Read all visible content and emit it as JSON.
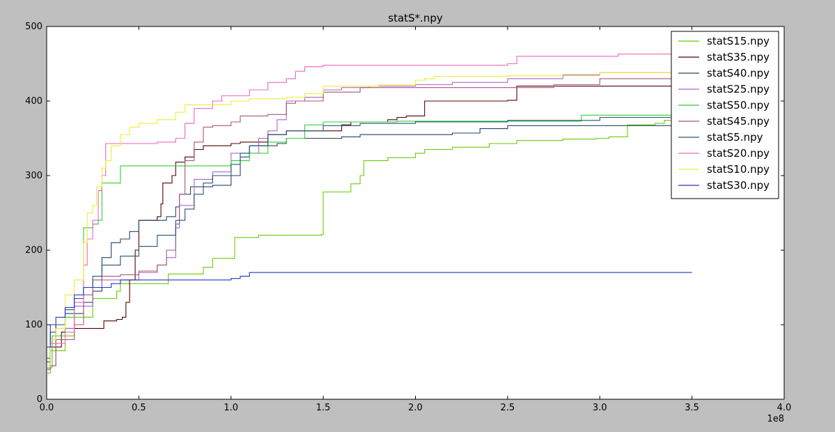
{
  "chart_data": {
    "type": "line",
    "title": "statS*.npy",
    "xlabel": "",
    "ylabel": "",
    "x_offset_label": "1e8",
    "xlim": [
      0,
      4.0
    ],
    "ylim": [
      0,
      500
    ],
    "x_ticks": [
      "0.0",
      "0.5",
      "1.0",
      "1.5",
      "2.0",
      "2.5",
      "3.0",
      "3.5",
      "4.0"
    ],
    "y_ticks": [
      "0",
      "100",
      "200",
      "300",
      "400",
      "500"
    ],
    "legend_position": "top-right",
    "grid": false,
    "series": [
      {
        "name": "statS15.npy",
        "color": "#66cc00",
        "points": [
          [
            0,
            35
          ],
          [
            0.02,
            65
          ],
          [
            0.1,
            85
          ],
          [
            0.15,
            110
          ],
          [
            0.25,
            135
          ],
          [
            0.38,
            145
          ],
          [
            0.4,
            155
          ],
          [
            0.65,
            155
          ],
          [
            0.66,
            168
          ],
          [
            0.8,
            168
          ],
          [
            0.85,
            177
          ],
          [
            0.9,
            189
          ],
          [
            1.0,
            189
          ],
          [
            1.02,
            217
          ],
          [
            1.15,
            220
          ],
          [
            1.49,
            221
          ],
          [
            1.5,
            278
          ],
          [
            1.65,
            289
          ],
          [
            1.7,
            300
          ],
          [
            1.72,
            320
          ],
          [
            1.85,
            324
          ],
          [
            2.0,
            330
          ],
          [
            2.05,
            335
          ],
          [
            2.2,
            338
          ],
          [
            2.4,
            343
          ],
          [
            2.55,
            347
          ],
          [
            2.8,
            349
          ],
          [
            2.98,
            350
          ],
          [
            3.05,
            352
          ],
          [
            3.15,
            368
          ],
          [
            3.3,
            370
          ],
          [
            3.35,
            374
          ],
          [
            3.5,
            375
          ]
        ]
      },
      {
        "name": "statS35.npy",
        "color": "#550000",
        "points": [
          [
            0,
            40
          ],
          [
            0.02,
            70
          ],
          [
            0.08,
            90
          ],
          [
            0.1,
            95
          ],
          [
            0.3,
            95
          ],
          [
            0.31,
            105
          ],
          [
            0.38,
            107
          ],
          [
            0.41,
            110
          ],
          [
            0.43,
            130
          ],
          [
            0.45,
            160
          ],
          [
            0.48,
            200
          ],
          [
            0.5,
            220
          ],
          [
            0.5,
            240
          ],
          [
            0.6,
            245
          ],
          [
            0.62,
            262
          ],
          [
            0.63,
            290
          ],
          [
            0.68,
            300
          ],
          [
            0.7,
            318
          ],
          [
            0.75,
            325
          ],
          [
            0.8,
            335
          ],
          [
            0.85,
            340
          ],
          [
            1.0,
            343
          ],
          [
            1.05,
            345
          ],
          [
            1.2,
            355
          ],
          [
            1.3,
            360
          ],
          [
            1.6,
            368
          ],
          [
            1.65,
            372
          ],
          [
            1.85,
            375
          ],
          [
            1.9,
            378
          ],
          [
            1.95,
            380
          ],
          [
            2.05,
            400
          ],
          [
            2.5,
            401
          ],
          [
            2.55,
            420
          ],
          [
            3.5,
            422
          ]
        ]
      },
      {
        "name": "statS40.npy",
        "color": "#224466",
        "points": [
          [
            0,
            50
          ],
          [
            0.02,
            80
          ],
          [
            0.05,
            100
          ],
          [
            0.1,
            115
          ],
          [
            0.2,
            130
          ],
          [
            0.25,
            145
          ],
          [
            0.3,
            170
          ],
          [
            0.3,
            190
          ],
          [
            0.35,
            210
          ],
          [
            0.4,
            215
          ],
          [
            0.45,
            225
          ],
          [
            0.5,
            240
          ],
          [
            0.6,
            240
          ],
          [
            0.65,
            245
          ],
          [
            0.7,
            258
          ],
          [
            0.72,
            275
          ],
          [
            0.78,
            285
          ],
          [
            0.9,
            287
          ],
          [
            0.95,
            287
          ],
          [
            1.0,
            300
          ],
          [
            1.05,
            325
          ],
          [
            1.1,
            340
          ],
          [
            1.25,
            343
          ],
          [
            1.3,
            350
          ],
          [
            1.5,
            350
          ],
          [
            1.6,
            352
          ],
          [
            1.7,
            355
          ],
          [
            2.2,
            357
          ],
          [
            2.35,
            363
          ],
          [
            2.5,
            367
          ],
          [
            3.5,
            368
          ]
        ]
      },
      {
        "name": "statS25.npy",
        "color": "#aa66cc",
        "points": [
          [
            0,
            45
          ],
          [
            0.05,
            95
          ],
          [
            0.15,
            125
          ],
          [
            0.25,
            150
          ],
          [
            0.3,
            160
          ],
          [
            0.5,
            170
          ],
          [
            0.6,
            180
          ],
          [
            0.65,
            190
          ],
          [
            0.7,
            230
          ],
          [
            0.72,
            260
          ],
          [
            0.8,
            295
          ],
          [
            0.9,
            305
          ],
          [
            1.0,
            330
          ],
          [
            1.15,
            350
          ],
          [
            1.2,
            360
          ],
          [
            1.25,
            375
          ],
          [
            1.3,
            400
          ],
          [
            1.4,
            405
          ],
          [
            1.5,
            415
          ],
          [
            1.6,
            418
          ],
          [
            1.75,
            420
          ],
          [
            2.0,
            422
          ],
          [
            2.2,
            425
          ],
          [
            2.5,
            430
          ],
          [
            2.8,
            435
          ],
          [
            3.0,
            438
          ],
          [
            3.5,
            441
          ]
        ]
      },
      {
        "name": "statS50.npy",
        "color": "#33cc33",
        "points": [
          [
            0,
            42
          ],
          [
            0.03,
            85
          ],
          [
            0.1,
            110
          ],
          [
            0.15,
            135
          ],
          [
            0.2,
            170
          ],
          [
            0.2,
            230
          ],
          [
            0.25,
            235
          ],
          [
            0.28,
            240
          ],
          [
            0.3,
            280
          ],
          [
            0.3,
            290
          ],
          [
            0.4,
            292
          ],
          [
            0.4,
            313
          ],
          [
            1.0,
            320
          ],
          [
            1.1,
            330
          ],
          [
            1.2,
            345
          ],
          [
            1.3,
            350
          ],
          [
            1.4,
            368
          ],
          [
            1.5,
            372
          ],
          [
            1.9,
            373
          ],
          [
            2.5,
            373
          ],
          [
            2.9,
            373
          ],
          [
            2.9,
            381
          ],
          [
            3.5,
            381
          ]
        ]
      },
      {
        "name": "statS45.npy",
        "color": "#aa5577",
        "points": [
          [
            0,
            45
          ],
          [
            0.05,
            80
          ],
          [
            0.15,
            100
          ],
          [
            0.2,
            140
          ],
          [
            0.25,
            160
          ],
          [
            0.3,
            165
          ],
          [
            0.4,
            167
          ],
          [
            0.5,
            172
          ],
          [
            0.6,
            180
          ],
          [
            0.65,
            200
          ],
          [
            0.7,
            235
          ],
          [
            0.72,
            275
          ],
          [
            0.75,
            320
          ],
          [
            0.8,
            345
          ],
          [
            0.85,
            365
          ],
          [
            0.9,
            367
          ],
          [
            1.0,
            372
          ],
          [
            1.05,
            380
          ],
          [
            1.1,
            380
          ],
          [
            1.15,
            380
          ],
          [
            1.2,
            382
          ],
          [
            1.3,
            397
          ],
          [
            1.35,
            400
          ],
          [
            1.5,
            412
          ],
          [
            1.7,
            418
          ],
          [
            2.0,
            418
          ],
          [
            2.5,
            418
          ],
          [
            2.75,
            422
          ],
          [
            3.0,
            430
          ],
          [
            3.5,
            435
          ]
        ]
      },
      {
        "name": "statS5.npy",
        "color": "#225577",
        "points": [
          [
            0,
            55
          ],
          [
            0.02,
            90
          ],
          [
            0.05,
            100
          ],
          [
            0.1,
            120
          ],
          [
            0.15,
            135
          ],
          [
            0.2,
            150
          ],
          [
            0.25,
            165
          ],
          [
            0.3,
            180
          ],
          [
            0.4,
            192
          ],
          [
            0.5,
            205
          ],
          [
            0.6,
            220
          ],
          [
            0.7,
            240
          ],
          [
            0.75,
            255
          ],
          [
            0.8,
            275
          ],
          [
            0.85,
            290
          ],
          [
            0.9,
            300
          ],
          [
            1.0,
            315
          ],
          [
            1.05,
            330
          ],
          [
            1.1,
            340
          ],
          [
            1.2,
            355
          ],
          [
            1.3,
            360
          ],
          [
            1.5,
            367
          ],
          [
            1.7,
            370
          ],
          [
            2.0,
            372
          ],
          [
            2.5,
            374
          ],
          [
            3.0,
            378
          ],
          [
            3.5,
            380
          ]
        ]
      },
      {
        "name": "statS20.npy",
        "color": "#ee66bb",
        "points": [
          [
            0,
            40
          ],
          [
            0.02,
            75
          ],
          [
            0.1,
            90
          ],
          [
            0.15,
            130
          ],
          [
            0.2,
            180
          ],
          [
            0.22,
            215
          ],
          [
            0.25,
            240
          ],
          [
            0.28,
            280
          ],
          [
            0.3,
            300
          ],
          [
            0.32,
            343
          ],
          [
            0.6,
            345
          ],
          [
            0.7,
            350
          ],
          [
            0.75,
            370
          ],
          [
            0.8,
            390
          ],
          [
            0.9,
            400
          ],
          [
            0.95,
            407
          ],
          [
            1.1,
            415
          ],
          [
            1.2,
            425
          ],
          [
            1.3,
            430
          ],
          [
            1.35,
            440
          ],
          [
            1.4,
            446
          ],
          [
            1.5,
            448
          ],
          [
            2.0,
            448
          ],
          [
            2.5,
            450
          ],
          [
            2.55,
            460
          ],
          [
            3.0,
            460
          ],
          [
            3.1,
            463
          ],
          [
            3.5,
            463
          ]
        ]
      },
      {
        "name": "statS10.npy",
        "color": "#eeee33",
        "points": [
          [
            0,
            45
          ],
          [
            0.02,
            80
          ],
          [
            0.05,
            95
          ],
          [
            0.1,
            140
          ],
          [
            0.15,
            160
          ],
          [
            0.2,
            210
          ],
          [
            0.22,
            250
          ],
          [
            0.25,
            260
          ],
          [
            0.27,
            285
          ],
          [
            0.3,
            310
          ],
          [
            0.32,
            320
          ],
          [
            0.35,
            340
          ],
          [
            0.4,
            355
          ],
          [
            0.45,
            365
          ],
          [
            0.5,
            370
          ],
          [
            0.6,
            375
          ],
          [
            0.7,
            385
          ],
          [
            0.75,
            395
          ],
          [
            1.0,
            400
          ],
          [
            1.1,
            403
          ],
          [
            1.3,
            405
          ],
          [
            1.4,
            410
          ],
          [
            1.5,
            420
          ],
          [
            1.8,
            422
          ],
          [
            2.0,
            428
          ],
          [
            2.05,
            430
          ],
          [
            2.1,
            433
          ],
          [
            2.5,
            434
          ],
          [
            3.0,
            438
          ],
          [
            3.5,
            440
          ]
        ]
      },
      {
        "name": "statS30.npy",
        "color": "#2233cc",
        "points": [
          [
            0,
            70
          ],
          [
            0.02,
            100
          ],
          [
            0.05,
            110
          ],
          [
            0.1,
            123
          ],
          [
            0.15,
            140
          ],
          [
            0.2,
            150
          ],
          [
            0.3,
            150
          ],
          [
            0.35,
            155
          ],
          [
            0.4,
            160
          ],
          [
            0.5,
            160
          ],
          [
            0.7,
            160
          ],
          [
            0.9,
            160
          ],
          [
            1.0,
            162
          ],
          [
            1.05,
            165
          ],
          [
            1.1,
            170
          ],
          [
            1.5,
            170
          ],
          [
            2.0,
            170
          ],
          [
            2.5,
            170
          ],
          [
            3.0,
            170
          ],
          [
            3.5,
            170
          ]
        ]
      }
    ]
  }
}
